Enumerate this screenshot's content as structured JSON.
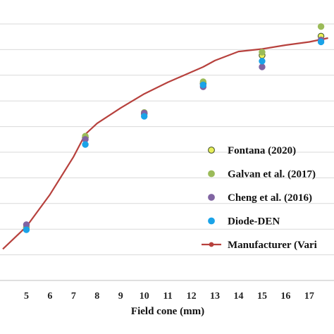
{
  "chart_data": {
    "type": "scatter",
    "xlabel": "Field cone (mm)",
    "ylabel": "",
    "title": "",
    "x_ticks": [
      5,
      6,
      7,
      8,
      9,
      10,
      11,
      12,
      13,
      14,
      15,
      16,
      17
    ],
    "xlim": [
      4,
      17.8
    ],
    "ylim": [
      0.8,
      1.0
    ],
    "y_gridlines": [
      0.8,
      0.82,
      0.84,
      0.86,
      0.88,
      0.9,
      0.92,
      0.94,
      0.96,
      0.98,
      1.0
    ],
    "grid": "horizontal",
    "legend_position": "right",
    "series": [
      {
        "name": "Fontana (2020)",
        "kind": "marker",
        "color": "#e8ef5a",
        "edge_color": "#3a4a22",
        "points": [
          [
            5,
            0.8415
          ],
          [
            7.5,
            0.9115
          ],
          [
            10,
            0.93
          ],
          [
            12.5,
            0.9535
          ],
          [
            15,
            0.9755
          ],
          [
            17.5,
            0.9905
          ]
        ]
      },
      {
        "name": "Galvan et al. (2017)",
        "kind": "marker",
        "color": "#9bbb59",
        "edge_color": "#9bbb59",
        "points": [
          [
            5,
            0.8415
          ],
          [
            7.5,
            0.9125
          ],
          [
            10,
            0.931
          ],
          [
            12.5,
            0.955
          ],
          [
            15,
            0.978
          ],
          [
            17.5,
            0.998
          ]
        ]
      },
      {
        "name": "Cheng et al. (2016)",
        "kind": "marker",
        "color": "#8064a2",
        "edge_color": "#8064a2",
        "points": [
          [
            5,
            0.8435
          ],
          [
            7.5,
            0.91
          ],
          [
            10,
            0.9305
          ],
          [
            12.5,
            0.951
          ],
          [
            15,
            0.9665
          ],
          [
            17.5,
            0.9875
          ]
        ]
      },
      {
        "name": "Diode-DEN",
        "kind": "marker",
        "color": "#1aa3e8",
        "edge_color": "#1aa3e8",
        "points": [
          [
            5,
            0.8395
          ],
          [
            7.5,
            0.906
          ],
          [
            10,
            0.928
          ],
          [
            12.5,
            0.9525
          ],
          [
            15,
            0.971
          ],
          [
            17.5,
            0.986
          ]
        ]
      },
      {
        "name": "Manufacturer (Vari",
        "kind": "line",
        "color": "#b7413d",
        "points": [
          [
            4,
            0.8245
          ],
          [
            5,
            0.842
          ],
          [
            6,
            0.867
          ],
          [
            7,
            0.8965
          ],
          [
            7.5,
            0.914
          ],
          [
            8,
            0.9225
          ],
          [
            9,
            0.9345
          ],
          [
            10,
            0.9455
          ],
          [
            11,
            0.9545
          ],
          [
            12,
            0.9625
          ],
          [
            12.5,
            0.9665
          ],
          [
            13,
            0.9715
          ],
          [
            14,
            0.9785
          ],
          [
            15,
            0.9805
          ],
          [
            16,
            0.9835
          ],
          [
            17,
            0.986
          ],
          [
            17.8,
            0.989
          ]
        ]
      }
    ]
  }
}
